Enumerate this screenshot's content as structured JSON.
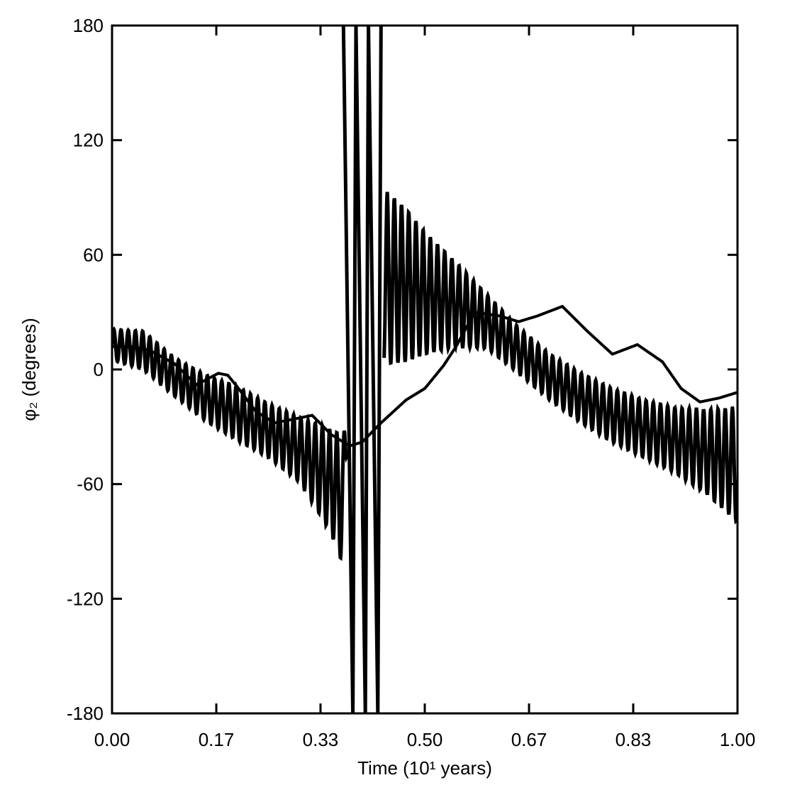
{
  "chart_data": {
    "type": "line",
    "xlabel": "Time (10¹ years)",
    "ylabel": "φ₂ (degrees)",
    "xlim": [
      0.0,
      1.0
    ],
    "ylim": [
      -180,
      180
    ],
    "xticks": [
      "0.00",
      "0.17",
      "0.33",
      "0.50",
      "0.67",
      "0.83",
      "1.00"
    ],
    "xtick_values": [
      0.0,
      0.1667,
      0.3333,
      0.5,
      0.6667,
      0.8333,
      1.0
    ],
    "yticks": [
      "180",
      "120",
      "60",
      "0",
      "-60",
      "-120",
      "-180"
    ],
    "ytick_values": [
      180,
      120,
      60,
      0,
      -60,
      -120,
      -180
    ],
    "grid": false,
    "series": [
      {
        "style": "smooth",
        "x": [
          0.0,
          0.03,
          0.06,
          0.1,
          0.135,
          0.17,
          0.185,
          0.2,
          0.23,
          0.26,
          0.29,
          0.32,
          0.35,
          0.38,
          0.4,
          0.43,
          0.47,
          0.5,
          0.53,
          0.55,
          0.58,
          0.62,
          0.65,
          0.68,
          0.72,
          0.76,
          0.8,
          0.84,
          0.88,
          0.91,
          0.94,
          0.97,
          1.0
        ],
        "y": [
          12,
          12,
          10,
          3,
          -8,
          -2,
          -3,
          -9,
          -22,
          -28,
          -26,
          -24,
          -34,
          -40,
          -38,
          -28,
          -16,
          -10,
          2,
          12,
          30,
          28,
          25,
          28,
          33,
          20,
          8,
          13,
          4,
          -10,
          -17,
          -15,
          -12
        ]
      },
      {
        "style": "oscillating",
        "x": [
          0.0,
          0.05,
          0.1,
          0.15,
          0.2,
          0.25,
          0.3,
          0.34,
          0.36,
          0.37,
          0.38,
          0.4,
          0.42,
          0.44,
          0.47,
          0.5,
          0.55,
          0.6,
          0.65,
          0.7,
          0.75,
          0.8,
          0.85,
          0.9,
          0.95,
          1.0
        ],
        "center": [
          13,
          10,
          -4,
          -15,
          -23,
          -32,
          -42,
          -55,
          -63,
          -70,
          0,
          0,
          0,
          48,
          44,
          40,
          34,
          25,
          10,
          -4,
          -15,
          -24,
          -31,
          -37,
          -43,
          -50
        ],
        "amplitude": [
          8,
          10,
          10,
          12,
          14,
          14,
          17,
          25,
          30,
          34,
          0,
          0,
          0,
          45,
          40,
          32,
          22,
          14,
          12,
          12,
          13,
          14,
          15,
          17,
          22,
          30
        ]
      },
      {
        "style": "wrapping",
        "description_free": true,
        "x": [
          0.37,
          0.385,
          0.39,
          0.405,
          0.41,
          0.425,
          0.43
        ],
        "y": [
          180,
          -180,
          180,
          -180,
          180,
          -180,
          180
        ]
      }
    ]
  }
}
